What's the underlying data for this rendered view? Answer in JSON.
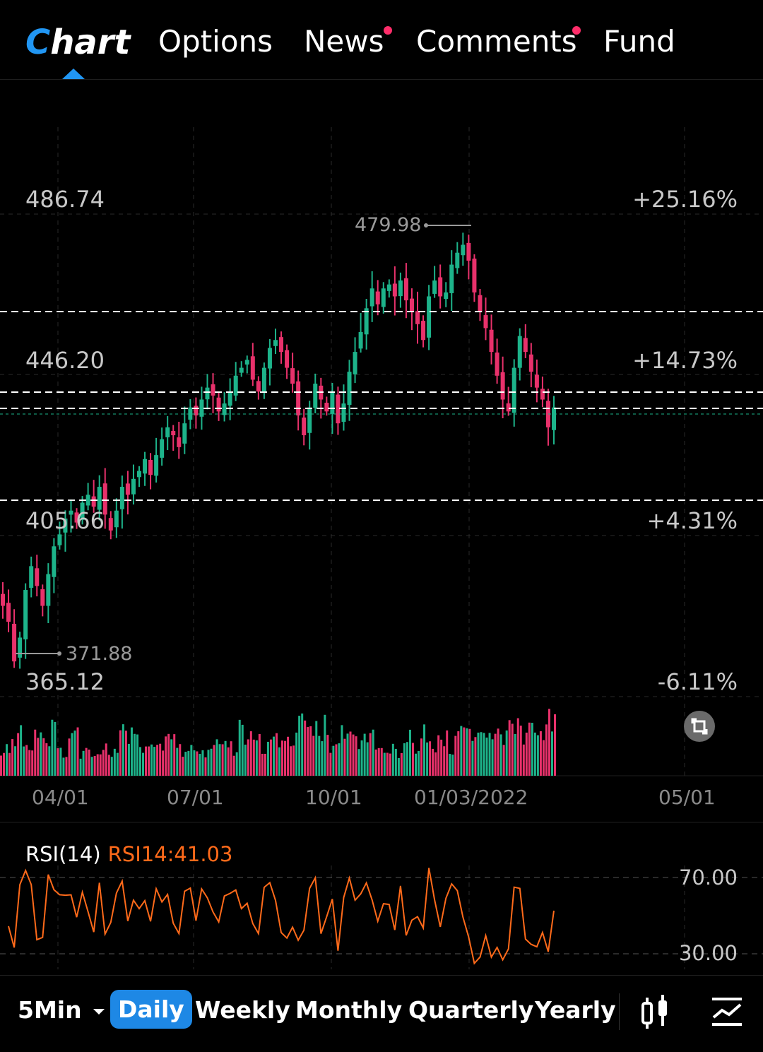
{
  "tabs": {
    "chart": "Chart",
    "options": "Options",
    "news": "News",
    "comments": "Comments",
    "fund": "Fund"
  },
  "price_axis": {
    "left": [
      "486.74",
      "446.20",
      "405.66",
      "365.12"
    ],
    "right": [
      "+25.16%",
      "+14.73%",
      "+4.31%",
      "-6.11%"
    ]
  },
  "annotations": {
    "high": "479.98",
    "low": "371.88"
  },
  "date_axis": [
    "04/01",
    "07/01",
    "10/01",
    "01/03/2022",
    "05/01"
  ],
  "rsi": {
    "name": "RSI(14)",
    "value": "RSI14:41.03",
    "upper": "70.00",
    "lower": "30.00"
  },
  "periods": {
    "intraday": "5Min",
    "daily": "Daily",
    "weekly": "Weekly",
    "monthly": "Monthly",
    "quarterly": "Quarterly",
    "yearly": "Yearly"
  },
  "colors": {
    "up": "#1db38a",
    "down": "#e8316b",
    "accent": "#1e88e5",
    "rsi_line": "#ff6a1a"
  },
  "icons": [
    "chevron-down-icon",
    "candlestick-indicator-icon",
    "line-chart-icon",
    "expand-icon"
  ],
  "chart_data": {
    "type": "candlestick",
    "y_range": [
      365.12,
      486.74
    ],
    "x_ticks": [
      "04/01",
      "07/01",
      "10/01",
      "01/03/2022",
      "05/01"
    ],
    "high_marker": 479.98,
    "low_marker": 371.88,
    "closes": [
      388,
      384,
      374,
      380,
      392,
      398,
      393,
      388,
      396,
      403,
      406,
      410,
      412,
      409,
      414,
      416,
      413,
      418,
      411,
      407,
      412,
      418,
      416,
      420,
      422,
      425,
      421,
      426,
      430,
      433,
      431,
      428,
      434,
      438,
      436,
      440,
      443,
      441,
      437,
      439,
      442,
      446,
      448,
      450,
      445,
      442,
      448,
      453,
      455,
      452,
      448,
      444,
      436,
      431,
      438,
      444,
      440,
      437,
      442,
      434,
      439,
      447,
      452,
      457,
      463,
      468,
      464,
      468,
      469,
      466,
      470,
      465,
      462,
      459,
      455,
      466,
      470,
      466,
      467,
      474,
      477,
      479,
      475,
      467,
      462,
      458,
      452,
      446,
      440,
      437,
      448,
      456,
      452,
      447,
      443,
      440,
      433,
      438
    ]
  }
}
